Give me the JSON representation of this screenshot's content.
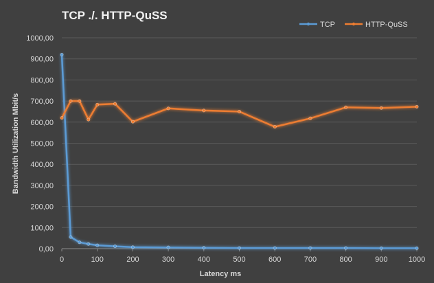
{
  "chart_data": {
    "type": "line",
    "title": "TCP ./. HTTP-QuSS",
    "xlabel": "Latency ms",
    "ylabel": "Bandwidth Utilization Mbit/s",
    "xlim": [
      0,
      1000
    ],
    "ylim": [
      0,
      1000
    ],
    "x_ticks": [
      "0",
      "100",
      "200",
      "300",
      "400",
      "500",
      "600",
      "700",
      "800",
      "900",
      "1000"
    ],
    "x_tick_values": [
      0,
      100,
      200,
      300,
      400,
      500,
      600,
      700,
      800,
      900,
      1000
    ],
    "y_ticks": [
      "0,00",
      "100,00",
      "200,00",
      "300,00",
      "400,00",
      "500,00",
      "600,00",
      "700,00",
      "800,00",
      "900,00",
      "1000,00"
    ],
    "y_tick_values": [
      0,
      100,
      200,
      300,
      400,
      500,
      600,
      700,
      800,
      900,
      1000
    ],
    "grid": true,
    "legend_position": "top-right",
    "background_color": "#404040",
    "series": [
      {
        "name": "TCP",
        "color": "#5b9bd5",
        "x": [
          0,
          25,
          50,
          75,
          100,
          150,
          200,
          300,
          400,
          500,
          600,
          700,
          800,
          900,
          1000
        ],
        "y": [
          920,
          55,
          30,
          22,
          16,
          11,
          7,
          6,
          4,
          3,
          3,
          3,
          3,
          2,
          2
        ]
      },
      {
        "name": "HTTP-QuSS",
        "color": "#ed7d31",
        "x": [
          0,
          25,
          50,
          75,
          100,
          150,
          200,
          300,
          400,
          500,
          600,
          700,
          800,
          900,
          1000
        ],
        "y": [
          620,
          700,
          700,
          612,
          683,
          687,
          602,
          665,
          655,
          650,
          578,
          618,
          670,
          667,
          673
        ]
      }
    ]
  }
}
